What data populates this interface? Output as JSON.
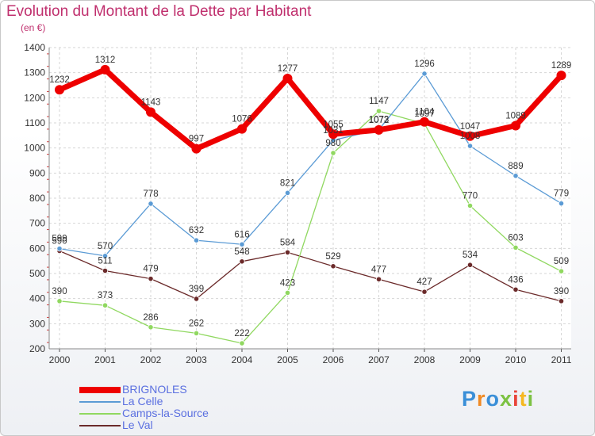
{
  "header": {
    "title": "Evolution du Montant de la Dette par Habitant",
    "unit": "(en €)"
  },
  "brand": {
    "letters": [
      "P",
      "r",
      "o",
      "x",
      "i",
      "t",
      "i"
    ]
  },
  "chart_data": {
    "type": "line",
    "title": "Evolution du Montant de la Dette par Habitant",
    "subtitle": "(en €)",
    "x": [
      "2000",
      "2001",
      "2002",
      "2003",
      "2004",
      "2005",
      "2006",
      "2007",
      "2008",
      "2009",
      "2010",
      "2011"
    ],
    "ylim": [
      200,
      1400
    ],
    "yticks": [
      200,
      300,
      400,
      500,
      600,
      700,
      800,
      900,
      1000,
      1100,
      1200,
      1300,
      1400
    ],
    "grid": true,
    "legend_position": "bottom-left",
    "series": [
      {
        "name": "BRIGNOLES",
        "color": "#ee0000",
        "values": [
          1232,
          1312,
          1143,
          997,
          1076,
          1277,
          1055,
          1072,
          1104,
          1047,
          1089,
          1289
        ]
      },
      {
        "name": "La Celle",
        "color": "#5b9bd5",
        "values": [
          599,
          570,
          778,
          632,
          616,
          821,
          1031,
          1073,
          1296,
          1008,
          889,
          779
        ]
      },
      {
        "name": "Camps-la-Source",
        "color": "#90d860",
        "values": [
          390,
          373,
          286,
          262,
          222,
          423,
          980,
          1147,
          1097,
          770,
          603,
          509
        ]
      },
      {
        "name": "Le Val",
        "color": "#6b2a2a",
        "values": [
          590,
          511,
          479,
          399,
          548,
          584,
          529,
          477,
          427,
          534,
          436,
          390
        ]
      }
    ]
  }
}
